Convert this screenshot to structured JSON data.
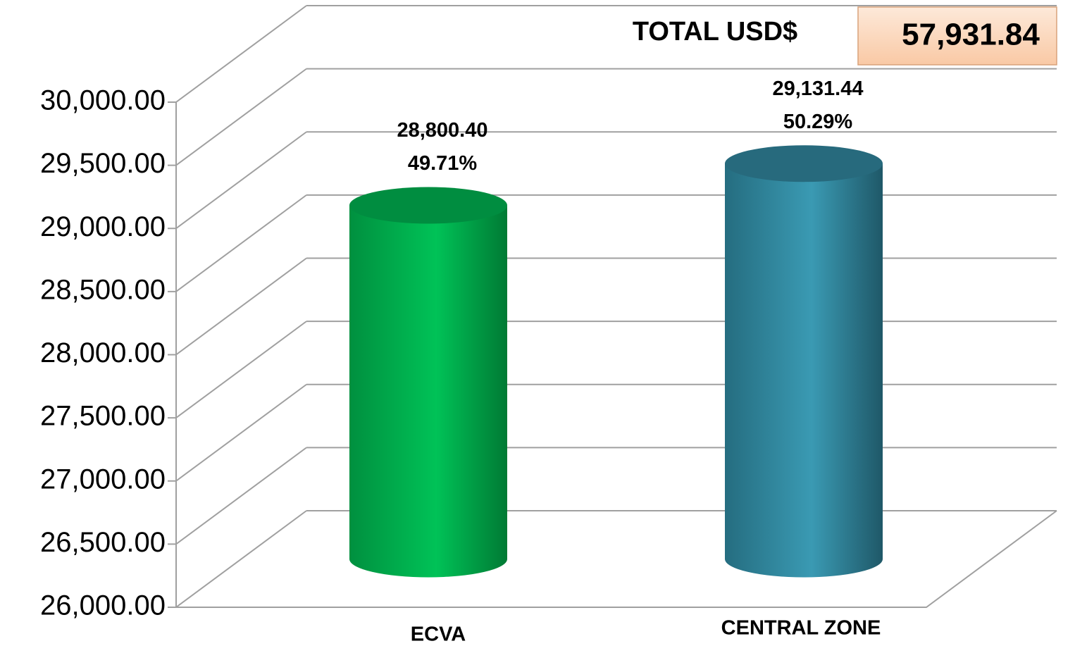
{
  "chart_data": {
    "type": "bar",
    "total_title": "TOTAL USD$",
    "total": {
      "value": 57931.84,
      "label": "57,931.84"
    },
    "categories": [
      "ECVA",
      "CENTRAL ZONE"
    ],
    "values": [
      28800.4,
      29131.44
    ],
    "value_labels": [
      "28,800.40",
      "29,131.44"
    ],
    "share_labels": [
      "49.71%",
      "50.29%"
    ],
    "colors": [
      "#00b050",
      "#31859c"
    ],
    "ylim": [
      26000,
      30000
    ],
    "yticks": [
      {
        "value": 26000,
        "label": "26,000.00"
      },
      {
        "value": 26500,
        "label": "26,500.00"
      },
      {
        "value": 27000,
        "label": "27,000.00"
      },
      {
        "value": 27500,
        "label": "27,500.00"
      },
      {
        "value": 28000,
        "label": "28,000.00"
      },
      {
        "value": 28500,
        "label": "28,500.00"
      },
      {
        "value": 29000,
        "label": "29,000.00"
      },
      {
        "value": 29500,
        "label": "29,500.00"
      },
      {
        "value": 30000,
        "label": "30,000.00"
      }
    ],
    "grid": true
  }
}
